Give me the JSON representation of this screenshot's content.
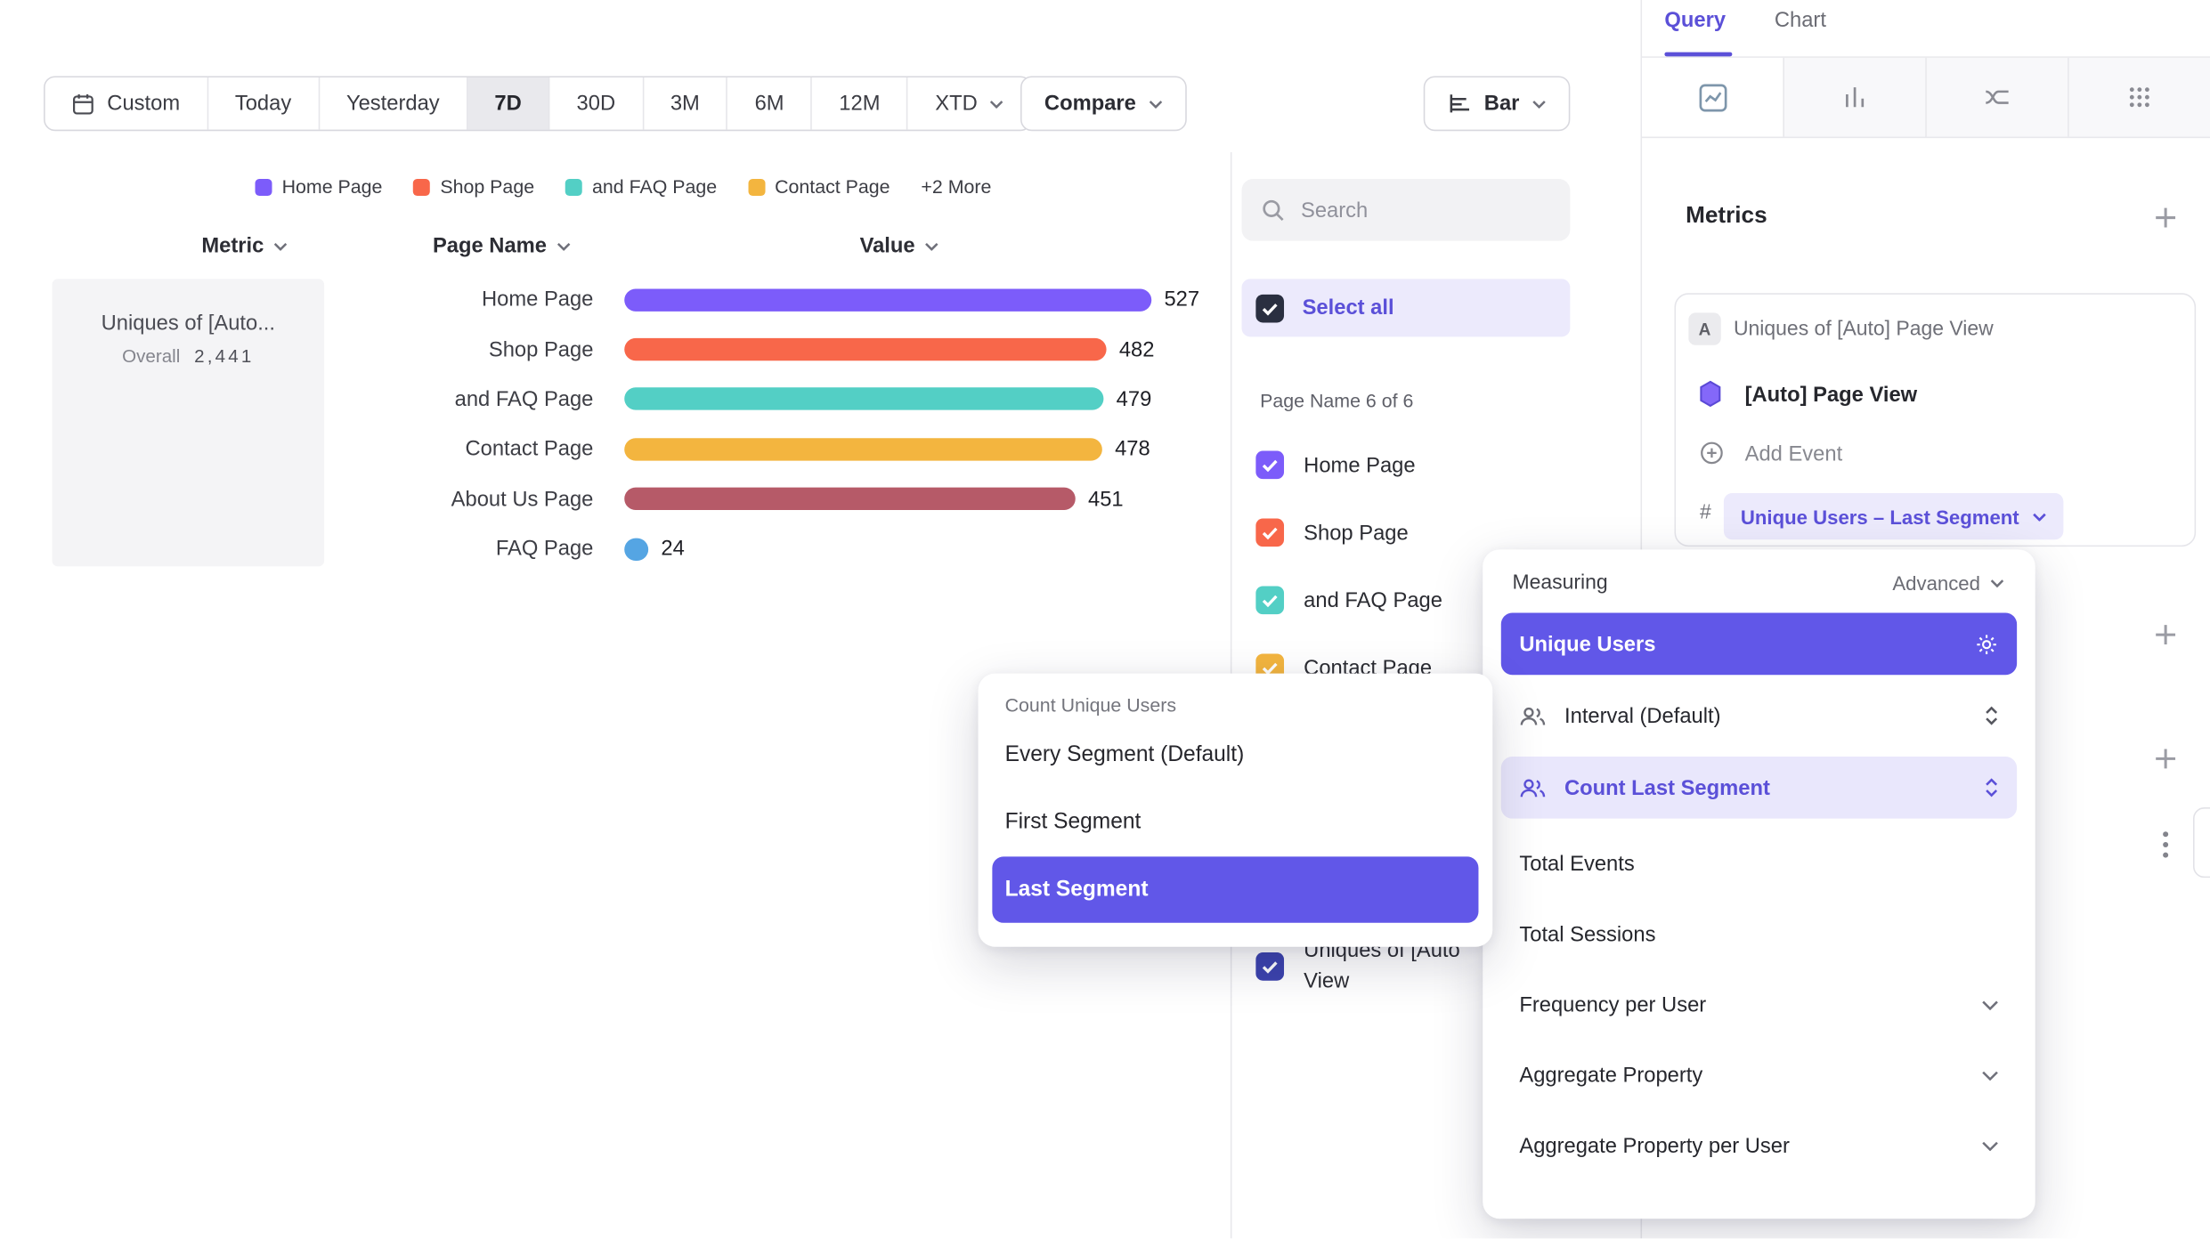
{
  "colors": {
    "accent": "#6157e8",
    "accent_soft": "#eceafc"
  },
  "toolbar": {
    "date_buttons": [
      {
        "label": "Custom"
      },
      {
        "label": "Today"
      },
      {
        "label": "Yesterday"
      },
      {
        "label": "7D",
        "active": true
      },
      {
        "label": "30D"
      },
      {
        "label": "3M"
      },
      {
        "label": "6M"
      },
      {
        "label": "12M"
      },
      {
        "label": "XTD"
      }
    ],
    "compare_label": "Compare",
    "chart_type_label": "Bar"
  },
  "legend": {
    "items": [
      {
        "label": "Home Page",
        "color": "#7c5cfa"
      },
      {
        "label": "Shop Page",
        "color": "#f8674a"
      },
      {
        "label": "and FAQ Page",
        "color": "#53cfc5"
      },
      {
        "label": "Contact Page",
        "color": "#f3b53f"
      },
      {
        "label": "+2 More"
      }
    ]
  },
  "table": {
    "metric_header": "Metric",
    "page_name_header": "Page Name",
    "value_header": "Value",
    "metric_cell": {
      "title": "Uniques of [Auto...",
      "overall_label": "Overall",
      "overall_value": "2,441"
    }
  },
  "chart_data": {
    "type": "bar",
    "orientation": "horizontal",
    "metric": "Uniques of [Auto] Page View",
    "overall_total": 2441,
    "categories": [
      "Home Page",
      "Shop Page",
      "and FAQ Page",
      "Contact Page",
      "About Us Page",
      "FAQ Page"
    ],
    "values": [
      527,
      482,
      479,
      478,
      451,
      24
    ],
    "colors": [
      "#7c5cfa",
      "#f8674a",
      "#53cfc5",
      "#f3b53f",
      "#b65a68",
      "#55a5e3"
    ],
    "xlim": [
      0,
      560
    ],
    "grid": false,
    "legend_position": "top"
  },
  "segments": {
    "search_placeholder": "Search",
    "select_all_label": "Select all",
    "select_all_color": "#2a2f40",
    "meta": "Page Name 6 of 6",
    "items": [
      {
        "label": "Home Page",
        "color": "#7c5cfa",
        "checked": true
      },
      {
        "label": "Shop Page",
        "color": "#f8674a",
        "checked": true
      },
      {
        "label": "and FAQ Page",
        "color": "#53cfc5",
        "checked": true
      },
      {
        "label": "Contact Page",
        "color": "#f3b53f",
        "checked": true
      }
    ],
    "metric_item": {
      "label": "Uniques of [Auto\nView",
      "color": "#3c43ae",
      "checked": true
    }
  },
  "query_panel": {
    "tabs": {
      "query": "Query",
      "chart": "Chart"
    },
    "metrics_title": "Metrics",
    "metric_card": {
      "badge": "A",
      "title": "Uniques of [Auto] Page View",
      "event_name": "[Auto] Page View",
      "add_event_label": "Add Event",
      "hash": "#",
      "measure_label": "Unique Users – Last Segment"
    }
  },
  "measuring_menu": {
    "title": "Measuring",
    "advanced_label": "Advanced",
    "unique_users": "Unique Users",
    "interval": "Interval (Default)",
    "count_last_segment": "Count Last Segment",
    "items": [
      "Total Events",
      "Total Sessions",
      "Frequency per User",
      "Aggregate Property",
      "Aggregate Property per User"
    ]
  },
  "segment_menu": {
    "title": "Count Unique Users",
    "items": [
      "Every Segment (Default)",
      "First Segment",
      "Last Segment"
    ],
    "selected": "Last Segment"
  }
}
